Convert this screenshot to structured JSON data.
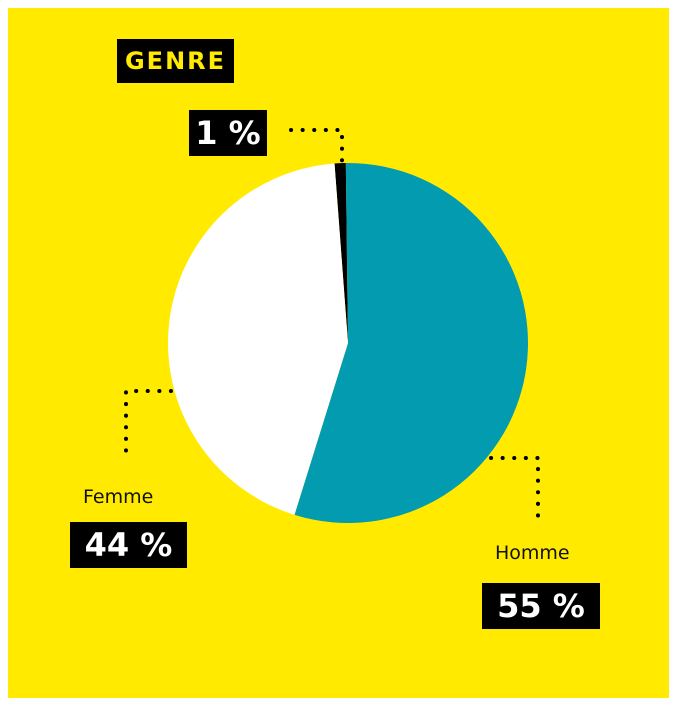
{
  "title": "GENRE",
  "colors": {
    "background": "#ffea00",
    "homme": "#039bb0",
    "femme": "#ffffff",
    "other": "#000000",
    "label_box": "#000000",
    "title_text": "#ffea00",
    "value_text": "#ffffff"
  },
  "chart_data": {
    "type": "pie",
    "title": "GENRE",
    "slices": [
      {
        "label": "",
        "value": 1,
        "display": "1 %",
        "color": "#000000"
      },
      {
        "label": "Homme",
        "value": 55,
        "display": "55 %",
        "color": "#039bb0"
      },
      {
        "label": "Femme",
        "value": 44,
        "display": "44 %",
        "color": "#ffffff"
      }
    ],
    "legend": "none",
    "data_labels": "outside with dotted leader lines"
  }
}
